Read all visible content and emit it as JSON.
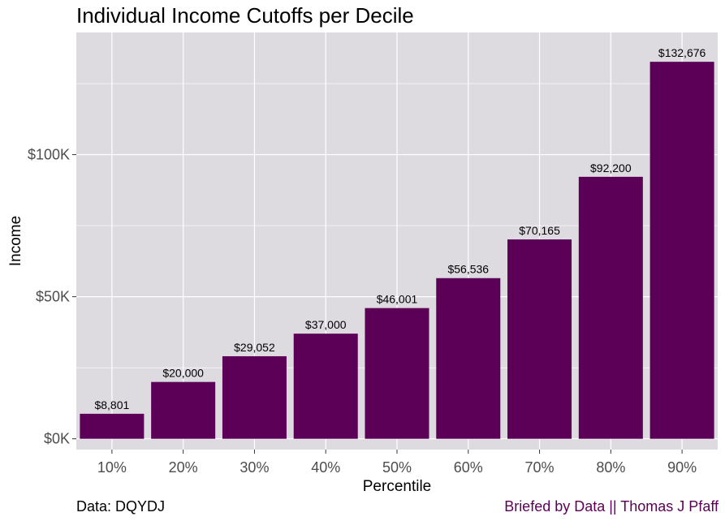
{
  "colors": {
    "panel_background": "#dedbe0",
    "gridline": "#ffffff",
    "bar_fill": "#5c0057",
    "credit_text": "#5c0057"
  },
  "chart_data": {
    "type": "bar",
    "title": "Individual Income Cutoffs per Decile",
    "xlabel": "Percentile",
    "ylabel": "Income",
    "categories": [
      "10%",
      "20%",
      "30%",
      "40%",
      "50%",
      "60%",
      "70%",
      "80%",
      "90%"
    ],
    "values": [
      8801,
      20000,
      29052,
      37000,
      46001,
      56536,
      70165,
      92200,
      132676
    ],
    "data_labels": [
      "$8,801",
      "$20,000",
      "$29,052",
      "$37,000",
      "$46,001",
      "$56,536",
      "$70,165",
      "$92,200",
      "$132,676"
    ],
    "yticks": [
      {
        "value": 0,
        "label": "$0K"
      },
      {
        "value": 50000,
        "label": "$50K"
      },
      {
        "value": 100000,
        "label": "$100K"
      }
    ],
    "ylim": [
      -3800,
      143000
    ],
    "grid": true,
    "legend": "none"
  },
  "captions": {
    "source": "Data: DQYDJ",
    "credit": "Briefed by Data || Thomas J Pfaff"
  }
}
